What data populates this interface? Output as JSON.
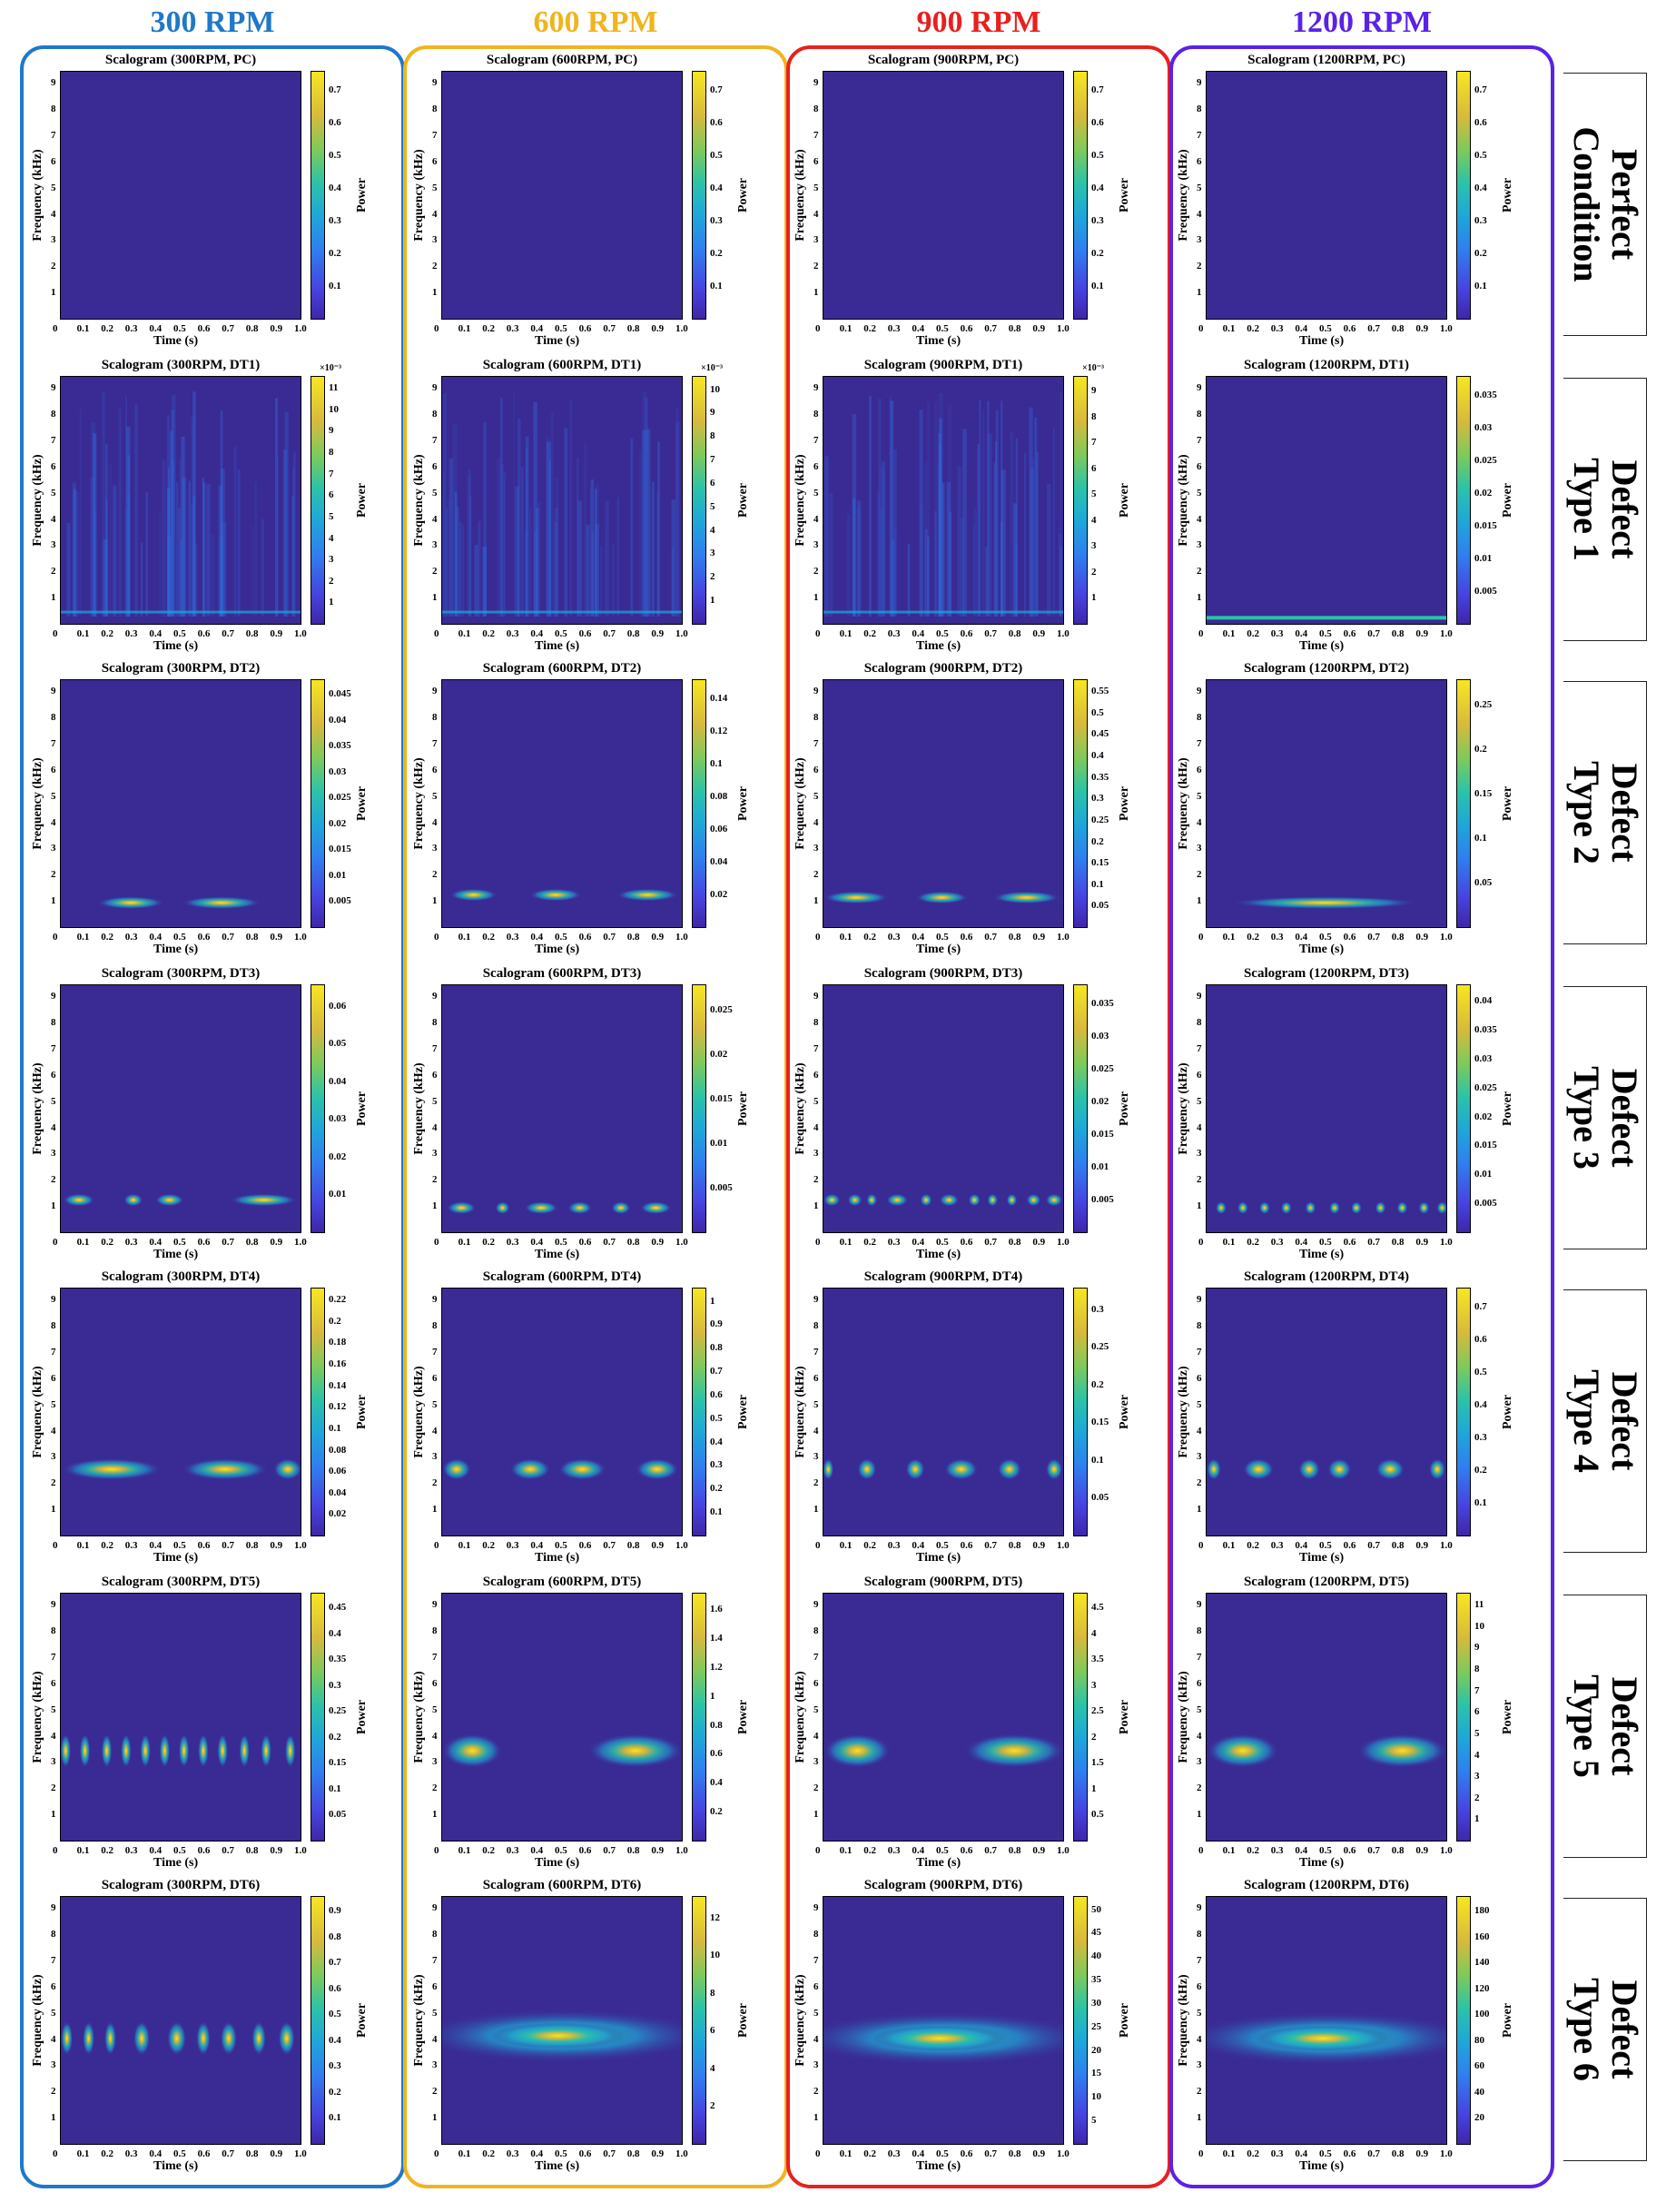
{
  "columns": [
    {
      "label": "300 RPM",
      "color": "#1f78c8"
    },
    {
      "label": "600 RPM",
      "color": "#f0b41e"
    },
    {
      "label": "900 RPM",
      "color": "#e8201e"
    },
    {
      "label": "1200 RPM",
      "color": "#5a22e6"
    }
  ],
  "rows": [
    {
      "label_line1": "Perfect",
      "label_line2": "Condition"
    },
    {
      "label_line1": "Defect",
      "label_line2": "Type 1"
    },
    {
      "label_line1": "Defect",
      "label_line2": "Type 2"
    },
    {
      "label_line1": "Defect",
      "label_line2": "Type 3"
    },
    {
      "label_line1": "Defect",
      "label_line2": "Type 4"
    },
    {
      "label_line1": "Defect",
      "label_line2": "Type 5"
    },
    {
      "label_line1": "Defect",
      "label_line2": "Type 6"
    }
  ],
  "colormap": "parula",
  "chart_data": {
    "type": "heatmap",
    "xlabel": "Time (s)",
    "ylabel": "Frequency (kHz)",
    "colorbar_label": "Power",
    "xlim": [
      0,
      1
    ],
    "ylim": [
      0,
      9.5
    ],
    "x_ticks": [
      "0",
      "0.1",
      "0.2",
      "0.3",
      "0.4",
      "0.5",
      "0.6",
      "0.7",
      "0.8",
      "0.9",
      "1.0"
    ],
    "y_ticks": [
      "1",
      "2",
      "3",
      "4",
      "5",
      "6",
      "7",
      "8",
      "9"
    ],
    "panels": [
      [
        {
          "title": "Scalogram (300RPM, PC)",
          "cbar_ticks": [
            "0.1",
            "0.2",
            "0.3",
            "0.4",
            "0.5",
            "0.6",
            "0.7"
          ],
          "cbar_exp": "",
          "pattern": "none"
        },
        {
          "title": "Scalogram (600RPM, PC)",
          "cbar_ticks": [
            "0.1",
            "0.2",
            "0.3",
            "0.4",
            "0.5",
            "0.6",
            "0.7"
          ],
          "cbar_exp": "",
          "pattern": "none"
        },
        {
          "title": "Scalogram (900RPM, PC)",
          "cbar_ticks": [
            "0.1",
            "0.2",
            "0.3",
            "0.4",
            "0.5",
            "0.6",
            "0.7"
          ],
          "cbar_exp": "",
          "pattern": "none"
        },
        {
          "title": "Scalogram (1200RPM, PC)",
          "cbar_ticks": [
            "0.1",
            "0.2",
            "0.3",
            "0.4",
            "0.5",
            "0.6",
            "0.7"
          ],
          "cbar_exp": "",
          "pattern": "none"
        }
      ],
      [
        {
          "title": "Scalogram (300RPM, DT1)",
          "cbar_ticks": [
            "1",
            "2",
            "3",
            "4",
            "5",
            "6",
            "7",
            "8",
            "9",
            "10",
            "11"
          ],
          "cbar_exp": "×10⁻³",
          "pattern": "noise",
          "band_khz": 0.5
        },
        {
          "title": "Scalogram (600RPM, DT1)",
          "cbar_ticks": [
            "1",
            "2",
            "3",
            "4",
            "5",
            "6",
            "7",
            "8",
            "9",
            "10"
          ],
          "cbar_exp": "×10⁻³",
          "pattern": "noise",
          "band_khz": 0.5
        },
        {
          "title": "Scalogram (900RPM, DT1)",
          "cbar_ticks": [
            "1",
            "2",
            "3",
            "4",
            "5",
            "6",
            "7",
            "8",
            "9"
          ],
          "cbar_exp": "×10⁻³",
          "pattern": "noise",
          "band_khz": 0.5
        },
        {
          "title": "Scalogram (1200RPM, DT1)",
          "cbar_ticks": [
            "0.005",
            "0.01",
            "0.015",
            "0.02",
            "0.025",
            "0.03",
            "0.035"
          ],
          "cbar_exp": "",
          "pattern": "line",
          "band_khz": 0.3
        }
      ],
      [
        {
          "title": "Scalogram (300RPM, DT2)",
          "cbar_ticks": [
            "0.005",
            "0.01",
            "0.015",
            "0.02",
            "0.025",
            "0.03",
            "0.035",
            "0.04",
            "0.045"
          ],
          "cbar_exp": "",
          "pattern": "bursts",
          "band_khz": 1.0,
          "bursts": [
            [
              0.15,
              0.43
            ],
            [
              0.5,
              0.83
            ]
          ]
        },
        {
          "title": "Scalogram (600RPM, DT2)",
          "cbar_ticks": [
            "0.02",
            "0.04",
            "0.06",
            "0.08",
            "0.1",
            "0.12",
            "0.14"
          ],
          "cbar_exp": "",
          "pattern": "bursts",
          "band_khz": 1.3,
          "bursts": [
            [
              0.03,
              0.23
            ],
            [
              0.36,
              0.58
            ],
            [
              0.72,
              0.98
            ]
          ]
        },
        {
          "title": "Scalogram (900RPM, DT2)",
          "cbar_ticks": [
            "0.05",
            "0.1",
            "0.15",
            "0.2",
            "0.25",
            "0.3",
            "0.35",
            "0.4",
            "0.45",
            "0.5",
            "0.55"
          ],
          "cbar_exp": "",
          "pattern": "bursts",
          "band_khz": 1.2,
          "bursts": [
            [
              0.0,
              0.27
            ],
            [
              0.38,
              0.6
            ],
            [
              0.7,
              0.98
            ]
          ]
        },
        {
          "title": "Scalogram (1200RPM, DT2)",
          "cbar_ticks": [
            "0.05",
            "0.1",
            "0.15",
            "0.2",
            "0.25"
          ],
          "cbar_exp": "",
          "pattern": "bursts",
          "band_khz": 1.0,
          "bursts": [
            [
              0.1,
              0.88
            ]
          ]
        }
      ],
      [
        {
          "title": "Scalogram (300RPM, DT3)",
          "cbar_ticks": [
            "0.01",
            "0.02",
            "0.03",
            "0.04",
            "0.05",
            "0.06"
          ],
          "cbar_exp": "",
          "pattern": "bursts",
          "band_khz": 1.3,
          "bursts": [
            [
              0.01,
              0.14
            ],
            [
              0.26,
              0.34
            ],
            [
              0.39,
              0.51
            ],
            [
              0.7,
              0.98
            ]
          ]
        },
        {
          "title": "Scalogram (600RPM, DT3)",
          "cbar_ticks": [
            "0.005",
            "0.01",
            "0.015",
            "0.02",
            "0.025"
          ],
          "cbar_exp": "",
          "pattern": "bursts",
          "band_khz": 1.0,
          "bursts": [
            [
              0.02,
              0.14
            ],
            [
              0.22,
              0.28
            ],
            [
              0.34,
              0.48
            ],
            [
              0.52,
              0.62
            ],
            [
              0.7,
              0.78
            ],
            [
              0.82,
              0.95
            ]
          ]
        },
        {
          "title": "Scalogram (900RPM, DT3)",
          "cbar_ticks": [
            "0.005",
            "0.01",
            "0.015",
            "0.02",
            "0.025",
            "0.03",
            "0.035"
          ],
          "cbar_exp": "",
          "pattern": "bursts",
          "band_khz": 1.3,
          "bursts": [
            [
              0.0,
              0.07
            ],
            [
              0.1,
              0.16
            ],
            [
              0.18,
              0.22
            ],
            [
              0.26,
              0.35
            ],
            [
              0.4,
              0.45
            ],
            [
              0.48,
              0.56
            ],
            [
              0.6,
              0.65
            ],
            [
              0.68,
              0.72
            ],
            [
              0.76,
              0.8
            ],
            [
              0.84,
              0.9
            ],
            [
              0.92,
              0.99
            ]
          ]
        },
        {
          "title": "Scalogram (1200RPM, DT3)",
          "cbar_ticks": [
            "0.005",
            "0.01",
            "0.015",
            "0.02",
            "0.025",
            "0.03",
            "0.035",
            "0.04"
          ],
          "cbar_exp": "",
          "pattern": "bursts",
          "band_khz": 1.0,
          "bursts": [
            [
              0.04,
              0.08
            ],
            [
              0.13,
              0.17
            ],
            [
              0.22,
              0.26
            ],
            [
              0.31,
              0.35
            ],
            [
              0.41,
              0.45
            ],
            [
              0.51,
              0.55
            ],
            [
              0.6,
              0.64
            ],
            [
              0.7,
              0.74
            ],
            [
              0.79,
              0.83
            ],
            [
              0.88,
              0.92
            ],
            [
              0.96,
              0.99
            ]
          ]
        }
      ],
      [
        {
          "title": "Scalogram (300RPM, DT4)",
          "cbar_ticks": [
            "0.02",
            "0.04",
            "0.06",
            "0.08",
            "0.1",
            "0.12",
            "0.14",
            "0.16",
            "0.18",
            "0.2",
            "0.22"
          ],
          "cbar_exp": "",
          "pattern": "bursts",
          "band_khz": 2.6,
          "bursts": [
            [
              0.0,
              0.42
            ],
            [
              0.5,
              0.86
            ],
            [
              0.88,
              1.0
            ]
          ]
        },
        {
          "title": "Scalogram (600RPM, DT4)",
          "cbar_ticks": [
            "0.1",
            "0.2",
            "0.3",
            "0.4",
            "0.5",
            "0.6",
            "0.7",
            "0.8",
            "0.9",
            "1"
          ],
          "cbar_exp": "",
          "pattern": "bursts",
          "band_khz": 2.6,
          "bursts": [
            [
              0.0,
              0.12
            ],
            [
              0.28,
              0.45
            ],
            [
              0.48,
              0.68
            ],
            [
              0.8,
              0.98
            ]
          ]
        },
        {
          "title": "Scalogram (900RPM, DT4)",
          "cbar_ticks": [
            "0.05",
            "0.1",
            "0.15",
            "0.2",
            "0.25",
            "0.3"
          ],
          "cbar_exp": "",
          "pattern": "bursts",
          "band_khz": 2.6,
          "bursts": [
            [
              0.0,
              0.04
            ],
            [
              0.14,
              0.22
            ],
            [
              0.34,
              0.42
            ],
            [
              0.5,
              0.64
            ],
            [
              0.72,
              0.82
            ],
            [
              0.92,
              0.99
            ]
          ]
        },
        {
          "title": "Scalogram (1200RPM, DT4)",
          "cbar_ticks": [
            "0.1",
            "0.2",
            "0.3",
            "0.4",
            "0.5",
            "0.6",
            "0.7"
          ],
          "cbar_exp": "",
          "pattern": "bursts",
          "band_khz": 2.6,
          "bursts": [
            [
              0.0,
              0.06
            ],
            [
              0.15,
              0.28
            ],
            [
              0.38,
              0.47
            ],
            [
              0.5,
              0.6
            ],
            [
              0.7,
              0.82
            ],
            [
              0.92,
              0.99
            ]
          ]
        }
      ],
      [
        {
          "title": "Scalogram (300RPM, DT5)",
          "cbar_ticks": [
            "0.05",
            "0.1",
            "0.15",
            "0.2",
            "0.25",
            "0.3",
            "0.35",
            "0.4",
            "0.45"
          ],
          "cbar_exp": "",
          "pattern": "bursts",
          "band_khz": 3.5,
          "bursts": [
            [
              0.0,
              0.04
            ],
            [
              0.08,
              0.12
            ],
            [
              0.17,
              0.21
            ],
            [
              0.25,
              0.29
            ],
            [
              0.33,
              0.37
            ],
            [
              0.41,
              0.45
            ],
            [
              0.49,
              0.53
            ],
            [
              0.57,
              0.61
            ],
            [
              0.65,
              0.69
            ],
            [
              0.74,
              0.78
            ],
            [
              0.83,
              0.87
            ],
            [
              0.93,
              0.97
            ]
          ]
        },
        {
          "title": "Scalogram (600RPM, DT5)",
          "cbar_ticks": [
            "0.2",
            "0.4",
            "0.6",
            "0.8",
            "1",
            "1.2",
            "1.4",
            "1.6"
          ],
          "cbar_exp": "",
          "pattern": "bursts",
          "band_khz": 3.5,
          "bursts": [
            [
              0.0,
              0.25
            ],
            [
              0.6,
              1.0
            ]
          ]
        },
        {
          "title": "Scalogram (900RPM, DT5)",
          "cbar_ticks": [
            "0.5",
            "1",
            "1.5",
            "2",
            "2.5",
            "3",
            "3.5",
            "4",
            "4.5"
          ],
          "cbar_exp": "",
          "pattern": "bursts",
          "band_khz": 3.5,
          "bursts": [
            [
              0.0,
              0.28
            ],
            [
              0.58,
              1.0
            ]
          ]
        },
        {
          "title": "Scalogram (1200RPM, DT5)",
          "cbar_ticks": [
            "1",
            "2",
            "3",
            "4",
            "5",
            "6",
            "7",
            "8",
            "9",
            "10",
            "11"
          ],
          "cbar_exp": "",
          "pattern": "bursts",
          "band_khz": 3.5,
          "bursts": [
            [
              0.0,
              0.3
            ],
            [
              0.62,
              1.0
            ]
          ]
        }
      ],
      [
        {
          "title": "Scalogram (300RPM, DT6)",
          "cbar_ticks": [
            "0.1",
            "0.2",
            "0.3",
            "0.4",
            "0.5",
            "0.6",
            "0.7",
            "0.8",
            "0.9"
          ],
          "cbar_exp": "",
          "pattern": "bursts",
          "band_khz": 4.1,
          "bursts": [
            [
              0.0,
              0.05
            ],
            [
              0.09,
              0.14
            ],
            [
              0.18,
              0.23
            ],
            [
              0.3,
              0.37
            ],
            [
              0.44,
              0.52
            ],
            [
              0.56,
              0.62
            ],
            [
              0.66,
              0.73
            ],
            [
              0.79,
              0.85
            ],
            [
              0.9,
              0.97
            ]
          ]
        },
        {
          "title": "Scalogram (600RPM, DT6)",
          "cbar_ticks": [
            "2",
            "4",
            "6",
            "8",
            "10",
            "12"
          ],
          "cbar_exp": "",
          "pattern": "wide",
          "band_khz": 4.2
        },
        {
          "title": "Scalogram (900RPM, DT6)",
          "cbar_ticks": [
            "5",
            "10",
            "15",
            "20",
            "25",
            "30",
            "35",
            "40",
            "45",
            "50"
          ],
          "cbar_exp": "",
          "pattern": "wide",
          "band_khz": 4.1
        },
        {
          "title": "Scalogram (1200RPM, DT6)",
          "cbar_ticks": [
            "20",
            "40",
            "60",
            "80",
            "100",
            "120",
            "140",
            "160",
            "180"
          ],
          "cbar_exp": "",
          "pattern": "wide",
          "band_khz": 4.1
        }
      ]
    ]
  }
}
